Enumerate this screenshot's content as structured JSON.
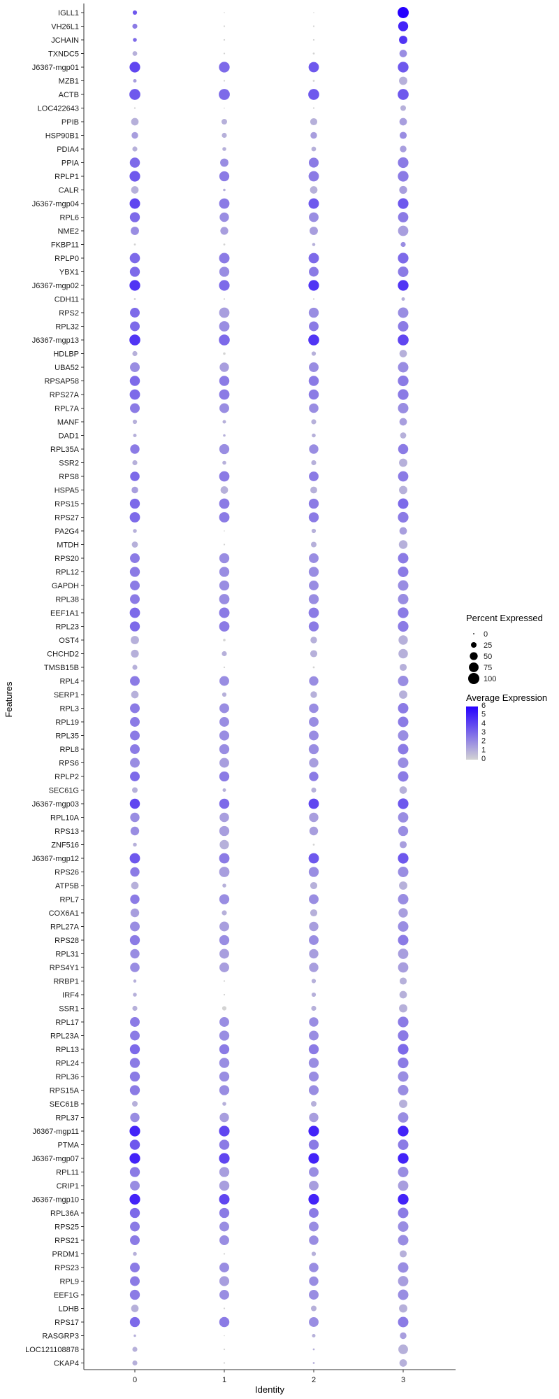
{
  "chart_data": {
    "type": "dotplot",
    "xlabel": "Identity",
    "ylabel": "Features",
    "x_categories": [
      "0",
      "1",
      "2",
      "3"
    ],
    "features": [
      "IGLL1",
      "VH26L1",
      "JCHAIN",
      "TXNDC5",
      "J6367-mgp01",
      "MZB1",
      "ACTB",
      "LOC422643",
      "PPIB",
      "HSP90B1",
      "PDIA4",
      "PPIA",
      "RPLP1",
      "CALR",
      "J6367-mgp04",
      "RPL6",
      "NME2",
      "FKBP11",
      "RPLP0",
      "YBX1",
      "J6367-mgp02",
      "CDH11",
      "RPS2",
      "RPL32",
      "J6367-mgp13",
      "HDLBP",
      "UBA52",
      "RPSAP58",
      "RPS27A",
      "RPL7A",
      "MANF",
      "DAD1",
      "RPL35A",
      "SSR2",
      "RPS8",
      "HSPA5",
      "RPS15",
      "RPS27",
      "PA2G4",
      "MTDH",
      "RPS20",
      "RPL12",
      "GAPDH",
      "RPL38",
      "EEF1A1",
      "RPL23",
      "OST4",
      "CHCHD2",
      "TMSB15B",
      "RPL4",
      "SERP1",
      "RPL3",
      "RPL19",
      "RPL35",
      "RPL8",
      "RPS6",
      "RPLP2",
      "SEC61G",
      "J6367-mgp03",
      "RPL10A",
      "RPS13",
      "ZNF516",
      "J6367-mgp12",
      "RPS26",
      "ATP5B",
      "RPL7",
      "COX6A1",
      "RPL27A",
      "RPS28",
      "RPL31",
      "RPS4Y1",
      "RRBP1",
      "IRF4",
      "SSR1",
      "RPL17",
      "RPL23A",
      "RPL13",
      "RPL24",
      "RPL36",
      "RPS15A",
      "SEC61B",
      "RPL37",
      "J6367-mgp11",
      "PTMA",
      "J6367-mgp07",
      "RPL11",
      "CRIP1",
      "J6367-mgp10",
      "RPL36A",
      "RPS25",
      "RPS21",
      "PRDM1",
      "RPS23",
      "RPL9",
      "EEF1G",
      "LDHB",
      "RPS17",
      "RASGRP3",
      "LOC121108878",
      "CKAP4"
    ],
    "pct": [
      [
        15,
        1,
        1,
        99
      ],
      [
        20,
        2,
        2,
        80
      ],
      [
        12,
        2,
        2,
        55
      ],
      [
        18,
        2,
        3,
        45
      ],
      [
        90,
        92,
        85,
        92
      ],
      [
        10,
        2,
        3,
        55
      ],
      [
        96,
        97,
        96,
        96
      ],
      [
        2,
        1,
        2,
        25
      ],
      [
        45,
        25,
        40,
        45
      ],
      [
        35,
        20,
        35,
        40
      ],
      [
        20,
        12,
        18,
        35
      ],
      [
        82,
        55,
        78,
        90
      ],
      [
        90,
        80,
        86,
        92
      ],
      [
        45,
        5,
        45,
        50
      ],
      [
        88,
        86,
        88,
        90
      ],
      [
        80,
        70,
        75,
        85
      ],
      [
        55,
        50,
        55,
        85
      ],
      [
        3,
        3,
        8,
        20
      ],
      [
        84,
        88,
        86,
        90
      ],
      [
        80,
        80,
        76,
        88
      ],
      [
        92,
        90,
        90,
        92
      ],
      [
        3,
        2,
        2,
        10
      ],
      [
        76,
        86,
        80,
        88
      ],
      [
        76,
        86,
        76,
        88
      ],
      [
        95,
        95,
        95,
        95
      ],
      [
        20,
        5,
        15,
        45
      ],
      [
        76,
        70,
        76,
        88
      ],
      [
        82,
        82,
        82,
        92
      ],
      [
        86,
        86,
        82,
        92
      ],
      [
        76,
        76,
        72,
        88
      ],
      [
        15,
        10,
        20,
        45
      ],
      [
        10,
        5,
        12,
        30
      ],
      [
        70,
        80,
        70,
        82
      ],
      [
        20,
        12,
        20,
        55
      ],
      [
        72,
        85,
        75,
        85
      ],
      [
        35,
        45,
        38,
        55
      ],
      [
        80,
        85,
        80,
        88
      ],
      [
        85,
        86,
        80,
        90
      ],
      [
        12,
        1,
        15,
        45
      ],
      [
        30,
        2,
        25,
        60
      ],
      [
        76,
        80,
        76,
        88
      ],
      [
        80,
        80,
        80,
        88
      ],
      [
        76,
        80,
        76,
        88
      ],
      [
        76,
        85,
        80,
        88
      ],
      [
        85,
        88,
        85,
        92
      ],
      [
        80,
        85,
        80,
        90
      ],
      [
        55,
        5,
        35,
        70
      ],
      [
        50,
        20,
        40,
        72
      ],
      [
        20,
        2,
        3,
        40
      ],
      [
        76,
        76,
        70,
        88
      ],
      [
        45,
        15,
        35,
        55
      ],
      [
        76,
        76,
        72,
        88
      ],
      [
        76,
        76,
        76,
        88
      ],
      [
        76,
        78,
        76,
        88
      ],
      [
        76,
        80,
        80,
        88
      ],
      [
        76,
        76,
        70,
        88
      ],
      [
        76,
        80,
        70,
        88
      ],
      [
        25,
        10,
        20,
        45
      ],
      [
        82,
        82,
        86,
        90
      ],
      [
        70,
        72,
        70,
        85
      ],
      [
        60,
        80,
        60,
        80
      ],
      [
        12,
        70,
        3,
        40
      ],
      [
        86,
        86,
        86,
        90
      ],
      [
        70,
        85,
        80,
        88
      ],
      [
        45,
        12,
        40,
        55
      ],
      [
        70,
        80,
        76,
        88
      ],
      [
        60,
        20,
        40,
        70
      ],
      [
        76,
        76,
        70,
        88
      ],
      [
        80,
        80,
        76,
        88
      ],
      [
        70,
        76,
        70,
        85
      ],
      [
        72,
        76,
        70,
        85
      ],
      [
        8,
        2,
        15,
        40
      ],
      [
        12,
        2,
        15,
        45
      ],
      [
        20,
        15,
        20,
        55
      ],
      [
        76,
        76,
        70,
        90
      ],
      [
        76,
        80,
        76,
        90
      ],
      [
        80,
        80,
        80,
        90
      ],
      [
        80,
        82,
        80,
        90
      ],
      [
        80,
        80,
        78,
        88
      ],
      [
        80,
        80,
        78,
        88
      ],
      [
        25,
        12,
        25,
        55
      ],
      [
        70,
        70,
        70,
        86
      ],
      [
        90,
        90,
        90,
        92
      ],
      [
        82,
        82,
        80,
        88
      ],
      [
        90,
        90,
        90,
        92
      ],
      [
        80,
        80,
        76,
        88
      ],
      [
        76,
        82,
        76,
        86
      ],
      [
        90,
        88,
        90,
        92
      ],
      [
        80,
        80,
        76,
        88
      ],
      [
        76,
        76,
        76,
        88
      ],
      [
        76,
        76,
        72,
        88
      ],
      [
        12,
        2,
        15,
        40
      ],
      [
        76,
        76,
        72,
        88
      ],
      [
        76,
        78,
        70,
        86
      ],
      [
        80,
        76,
        76,
        88
      ],
      [
        45,
        2,
        25,
        55
      ],
      [
        80,
        82,
        76,
        88
      ],
      [
        5,
        1,
        10,
        35
      ],
      [
        20,
        2,
        3,
        75
      ],
      [
        20,
        2,
        3,
        45
      ]
    ],
    "avg": [
      [
        3.5,
        0,
        0,
        6
      ],
      [
        2.5,
        0,
        0,
        5
      ],
      [
        3,
        0,
        0,
        4.5
      ],
      [
        1,
        0,
        0,
        2
      ],
      [
        4,
        3,
        3.5,
        3.5
      ],
      [
        1.5,
        0,
        0,
        1
      ],
      [
        3.5,
        3,
        3.5,
        3.5
      ],
      [
        0,
        0,
        0,
        1
      ],
      [
        1,
        1,
        1,
        1.5
      ],
      [
        1.5,
        1,
        1.5,
        2
      ],
      [
        1,
        1,
        1,
        1.5
      ],
      [
        3,
        2,
        2.5,
        2.5
      ],
      [
        3.5,
        2.5,
        2.5,
        2.5
      ],
      [
        1,
        1,
        1,
        1.5
      ],
      [
        4,
        2.5,
        3.5,
        3.5
      ],
      [
        3,
        2,
        2,
        2.5
      ],
      [
        2,
        1.5,
        1.5,
        1.5
      ],
      [
        0,
        0,
        1,
        2
      ],
      [
        3,
        2.5,
        3,
        3
      ],
      [
        3,
        2,
        2.5,
        2.5
      ],
      [
        4.5,
        3,
        4.5,
        4.5
      ],
      [
        0,
        0,
        0,
        1
      ],
      [
        3,
        1.5,
        2,
        2
      ],
      [
        3,
        2,
        2.5,
        2.5
      ],
      [
        4.5,
        3,
        4.5,
        4
      ],
      [
        1,
        0,
        1,
        1
      ],
      [
        2,
        1.5,
        2,
        2
      ],
      [
        3,
        2.5,
        2.5,
        2.5
      ],
      [
        3,
        2.5,
        2.5,
        2.5
      ],
      [
        2.5,
        2,
        2,
        2
      ],
      [
        1,
        1,
        1,
        1.5
      ],
      [
        1,
        1,
        1,
        1
      ],
      [
        2.5,
        2,
        2,
        2.5
      ],
      [
        1,
        1,
        1,
        1
      ],
      [
        3,
        2.5,
        2.5,
        2.5
      ],
      [
        1.5,
        1,
        1,
        1
      ],
      [
        3,
        2.5,
        2.5,
        3
      ],
      [
        3,
        2.5,
        2.5,
        2.5
      ],
      [
        1,
        0,
        1,
        1.5
      ],
      [
        1,
        0,
        1,
        1
      ],
      [
        2.5,
        2,
        2,
        2.5
      ],
      [
        2.5,
        2,
        2,
        2.5
      ],
      [
        2.5,
        2,
        2,
        2
      ],
      [
        2.5,
        2,
        2,
        2
      ],
      [
        3,
        2.5,
        2.5,
        2.5
      ],
      [
        3,
        2.5,
        2.5,
        2.5
      ],
      [
        1,
        0,
        1,
        1
      ],
      [
        1,
        1,
        1,
        1
      ],
      [
        1,
        0,
        0,
        1
      ],
      [
        2.5,
        2,
        2,
        2
      ],
      [
        1,
        1,
        1,
        1
      ],
      [
        2.5,
        2,
        2,
        2.5
      ],
      [
        2.5,
        2,
        2,
        2.5
      ],
      [
        2.5,
        2,
        2,
        2
      ],
      [
        2.5,
        2,
        2,
        2.5
      ],
      [
        2,
        1.5,
        1.5,
        2
      ],
      [
        3,
        2.5,
        2.5,
        2.5
      ],
      [
        1,
        1,
        1,
        1
      ],
      [
        4,
        3,
        4,
        3.5
      ],
      [
        2,
        1.5,
        1.5,
        2
      ],
      [
        2,
        1.5,
        1.5,
        2
      ],
      [
        1,
        1,
        0,
        1.5
      ],
      [
        3.5,
        2.5,
        3.5,
        3.5
      ],
      [
        2.5,
        1.5,
        2,
        2
      ],
      [
        1,
        1,
        1,
        1
      ],
      [
        2.5,
        2,
        2,
        2
      ],
      [
        1.5,
        1,
        1,
        1.5
      ],
      [
        2,
        1.5,
        1.5,
        2
      ],
      [
        2.5,
        2,
        2,
        2.5
      ],
      [
        2,
        1.5,
        1.5,
        1.5
      ],
      [
        2,
        1.5,
        1.5,
        1.5
      ],
      [
        1,
        0,
        1,
        1
      ],
      [
        1,
        0,
        1,
        1
      ],
      [
        1,
        0,
        1,
        1
      ],
      [
        2.5,
        2,
        2,
        2.5
      ],
      [
        2.5,
        2,
        2,
        2.5
      ],
      [
        3,
        2.5,
        2.5,
        3
      ],
      [
        2.5,
        2,
        2,
        2.5
      ],
      [
        2.5,
        2,
        2,
        2
      ],
      [
        2.5,
        2,
        2,
        2
      ],
      [
        1,
        1,
        1,
        1
      ],
      [
        2,
        1.5,
        1.5,
        2
      ],
      [
        5,
        4,
        5,
        5
      ],
      [
        3.5,
        2.5,
        2.5,
        2.5
      ],
      [
        5,
        4,
        5,
        5
      ],
      [
        2.5,
        1.5,
        2,
        2
      ],
      [
        2,
        1.5,
        1.5,
        1.5
      ],
      [
        5,
        4,
        5,
        5
      ],
      [
        3,
        2.5,
        2.5,
        2.5
      ],
      [
        2.5,
        2,
        2,
        2
      ],
      [
        2.5,
        2,
        2,
        2
      ],
      [
        1,
        0,
        1,
        1
      ],
      [
        2.5,
        2,
        2,
        2
      ],
      [
        2.5,
        1.5,
        2,
        1.5
      ],
      [
        2.5,
        2,
        2,
        2
      ],
      [
        1,
        0,
        1,
        1
      ],
      [
        3,
        2.5,
        2,
        2.5
      ],
      [
        1,
        0,
        1,
        1.5
      ],
      [
        1,
        0,
        1,
        1
      ],
      [
        1,
        0,
        1,
        1
      ]
    ],
    "legend": {
      "size_title": "Percent Expressed",
      "size_breaks": [
        0,
        25,
        50,
        75,
        100
      ],
      "color_title": "Average Expression",
      "color_breaks": [
        0,
        1,
        2,
        3,
        4,
        5,
        6
      ],
      "color_range": [
        0,
        6
      ],
      "low_color": "#d3d3d3",
      "high_color": "#2600ff",
      "placement": "right"
    }
  }
}
